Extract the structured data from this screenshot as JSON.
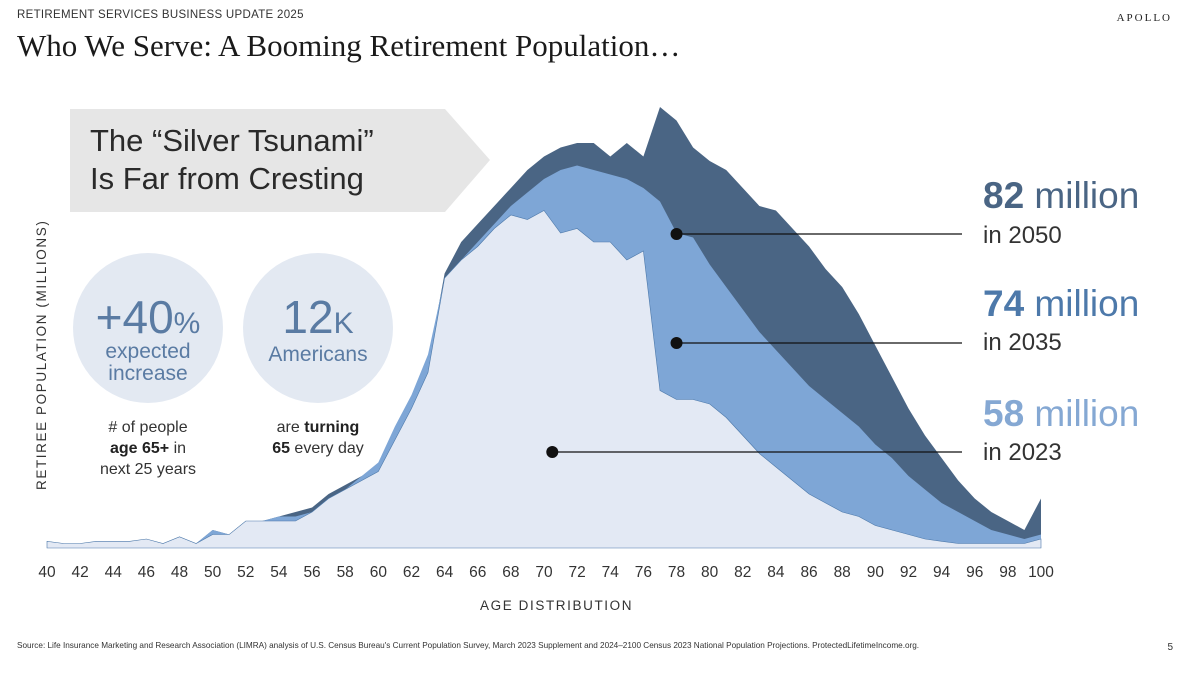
{
  "header": {
    "section_label": "RETIREMENT SERVICES BUSINESS UPDATE 2025",
    "brand": "APOLLO",
    "title": "Who We Serve: A Booming Retirement Population…"
  },
  "callout": {
    "line1": "The “Silver Tsunami”",
    "line2": "Is Far from Cresting"
  },
  "stats": [
    {
      "big": "+40",
      "big_suffix": "%",
      "sub1": "expected",
      "sub2": "increase",
      "caption_line1": "# of people",
      "caption_bold": "age 65+",
      "caption_rest": " in",
      "caption_line3": "next 25 years"
    },
    {
      "big": "12",
      "big_suffix": "K",
      "sub1": "Americans",
      "caption_pre": "are ",
      "caption_bold1": "turning",
      "caption_bold2": "65",
      "caption_rest": " every day"
    }
  ],
  "annotations": [
    {
      "number": "82",
      "unit": " million",
      "year_text": "in 2050",
      "color": "#4a6584"
    },
    {
      "number": "74",
      "unit": " million",
      "year_text": "in 2035",
      "color": "#4d79aa"
    },
    {
      "number": "58",
      "unit": " million",
      "year_text": "in 2023",
      "color": "#85a8d3"
    }
  ],
  "footer": {
    "source": "Source: Life Insurance Marketing and Research Association (LIMRA) analysis of U.S. Census Bureau's Current Population Survey, March 2023 Supplement and 2024–2100 Census 2023 National Population Projections. ProtectedLifetimeIncome.org.",
    "page_number": "5"
  },
  "chart_data": {
    "type": "area",
    "title": "",
    "xlabel": "AGE DISTRIBUTION",
    "ylabel": "RETIREE POPULATION (MILLIONS)",
    "x_ticks": [
      40,
      42,
      44,
      46,
      48,
      50,
      52,
      54,
      56,
      58,
      60,
      62,
      64,
      66,
      68,
      70,
      72,
      74,
      76,
      78,
      80,
      82,
      84,
      86,
      88,
      90,
      92,
      94,
      96,
      98,
      100
    ],
    "xlim": [
      40,
      100
    ],
    "ylim": [
      0,
      100
    ],
    "x": [
      40,
      41,
      42,
      43,
      44,
      45,
      46,
      47,
      48,
      49,
      50,
      51,
      52,
      53,
      54,
      55,
      56,
      57,
      58,
      59,
      60,
      61,
      62,
      63,
      64,
      65,
      66,
      67,
      68,
      69,
      70,
      71,
      72,
      73,
      74,
      75,
      76,
      77,
      78,
      79,
      80,
      81,
      82,
      83,
      84,
      85,
      86,
      87,
      88,
      89,
      90,
      91,
      92,
      93,
      94,
      95,
      96,
      97,
      98,
      99,
      100
    ],
    "series": [
      {
        "name": "2050",
        "color": "#4a6584",
        "values": [
          1.5,
          1,
          1,
          1.5,
          1.5,
          1.5,
          2,
          1,
          2.5,
          1,
          4,
          3,
          6,
          6,
          7,
          8,
          9,
          12,
          14,
          16,
          18,
          25,
          33,
          41,
          61,
          68,
          72,
          76,
          80,
          84,
          87,
          89,
          90,
          90,
          87,
          90,
          87,
          98,
          95,
          89,
          86,
          84,
          80,
          76,
          75,
          71,
          67,
          62,
          58,
          52,
          45,
          38,
          31,
          25,
          20,
          15,
          11,
          8,
          6,
          4,
          11
        ]
      },
      {
        "name": "2035",
        "color": "#7ea6d6",
        "values": [
          1.5,
          1,
          1,
          1,
          1.5,
          1,
          2,
          1,
          2.5,
          1,
          4,
          3,
          6,
          6,
          7,
          7,
          8,
          11,
          13,
          16,
          19,
          27,
          34,
          43,
          60,
          64,
          68,
          72,
          76,
          79,
          82,
          84,
          85,
          84,
          83,
          82,
          80,
          77,
          70,
          69,
          63,
          58,
          53,
          48,
          44,
          40,
          36,
          33,
          30,
          27,
          23,
          20,
          16,
          13,
          10,
          8,
          6,
          4,
          3,
          2,
          3
        ]
      },
      {
        "name": "2023",
        "color": "#e3e9f4",
        "values": [
          1.5,
          1,
          1,
          1.5,
          1.5,
          1.5,
          2,
          1,
          2.5,
          1,
          3,
          3,
          6,
          6,
          6,
          6,
          8,
          11,
          13,
          15,
          17,
          24,
          31,
          39,
          60,
          64,
          67,
          71,
          74,
          73,
          75,
          70,
          71,
          68,
          68,
          64,
          66,
          35,
          33,
          33,
          32,
          29,
          25,
          21,
          18,
          15,
          12,
          10,
          8,
          7,
          5,
          4,
          3,
          2,
          1.5,
          1,
          1,
          1,
          1,
          1,
          2
        ]
      }
    ]
  }
}
